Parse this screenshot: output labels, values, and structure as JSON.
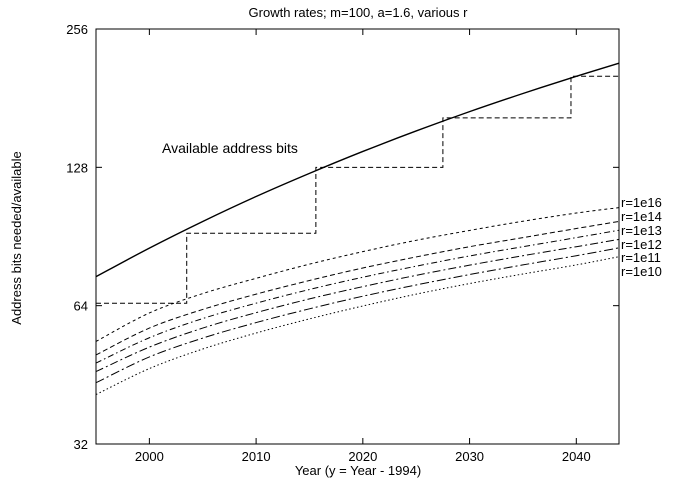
{
  "chart_data": {
    "type": "line",
    "title": "Growth rates; m=100, a=1.6, various r",
    "xlabel": "Year (y = Year - 1994)",
    "ylabel": "Address bits needed/available",
    "xlim": [
      1995,
      2044
    ],
    "ylim": [
      32,
      256
    ],
    "y_scale": "log2",
    "x_ticks": [
      2000,
      2010,
      2020,
      2030,
      2040
    ],
    "y_ticks": [
      32,
      64,
      128,
      256
    ],
    "grid": false,
    "legend_position": "right, at line ends",
    "annotation": "Available address bits",
    "available": {
      "x": [
        1995,
        2000,
        2005,
        2010,
        2015,
        2020,
        2025,
        2030,
        2035,
        2040,
        2044
      ],
      "y": [
        74,
        85.4,
        97.6,
        110.6,
        124.2,
        138.6,
        153.6,
        169.2,
        185.3,
        202.0,
        215.7
      ]
    },
    "step": {
      "x": [
        1995,
        2003.5,
        2003.5,
        2015.6,
        2015.6,
        2027.5,
        2027.5,
        2039.5,
        2039.5,
        2044
      ],
      "y": [
        64.8,
        64.8,
        92,
        92,
        128,
        128,
        164,
        164,
        202,
        202
      ]
    },
    "series": [
      {
        "name": "r=1e16",
        "x": [
          1995,
          2000,
          2005,
          2010,
          2015,
          2020,
          2025,
          2030,
          2035,
          2040,
          2044
        ],
        "y": [
          53.5,
          61.7,
          68.0,
          73.4,
          78.8,
          83.9,
          88.8,
          93.3,
          97.7,
          101.8,
          104.6
        ]
      },
      {
        "name": "r=1e14",
        "x": [
          1995,
          2000,
          2005,
          2010,
          2015,
          2020,
          2025,
          2030,
          2035,
          2040,
          2044
        ],
        "y": [
          50.0,
          57.2,
          62.8,
          67.8,
          72.6,
          77.3,
          81.7,
          86.0,
          90.0,
          94.2,
          97.6
        ]
      },
      {
        "name": "r=1e13",
        "x": [
          1995,
          2000,
          2005,
          2010,
          2015,
          2020,
          2025,
          2030,
          2035,
          2040,
          2044
        ],
        "y": [
          48.0,
          54.5,
          60.0,
          64.8,
          69.4,
          73.8,
          78.0,
          82.1,
          86.0,
          90.0,
          93.4
        ]
      },
      {
        "name": "r=1e12",
        "x": [
          1995,
          2000,
          2005,
          2010,
          2015,
          2020,
          2025,
          2030,
          2035,
          2040,
          2044
        ],
        "y": [
          46.0,
          52.0,
          57.2,
          61.8,
          66.2,
          70.4,
          74.5,
          78.4,
          82.2,
          86.0,
          89.2
        ]
      },
      {
        "name": "r=1e11",
        "x": [
          1995,
          2000,
          2005,
          2010,
          2015,
          2020,
          2025,
          2030,
          2035,
          2040,
          2044
        ],
        "y": [
          43.5,
          49.5,
          54.4,
          58.8,
          63.0,
          67.1,
          71.0,
          74.8,
          78.5,
          82.2,
          85.5
        ]
      },
      {
        "name": "r=1e10",
        "x": [
          1995,
          2000,
          2005,
          2010,
          2015,
          2020,
          2025,
          2030,
          2035,
          2040,
          2044
        ],
        "y": [
          41.0,
          46.7,
          51.5,
          55.8,
          59.9,
          63.9,
          67.8,
          71.5,
          75.0,
          78.5,
          81.8
        ]
      }
    ]
  }
}
